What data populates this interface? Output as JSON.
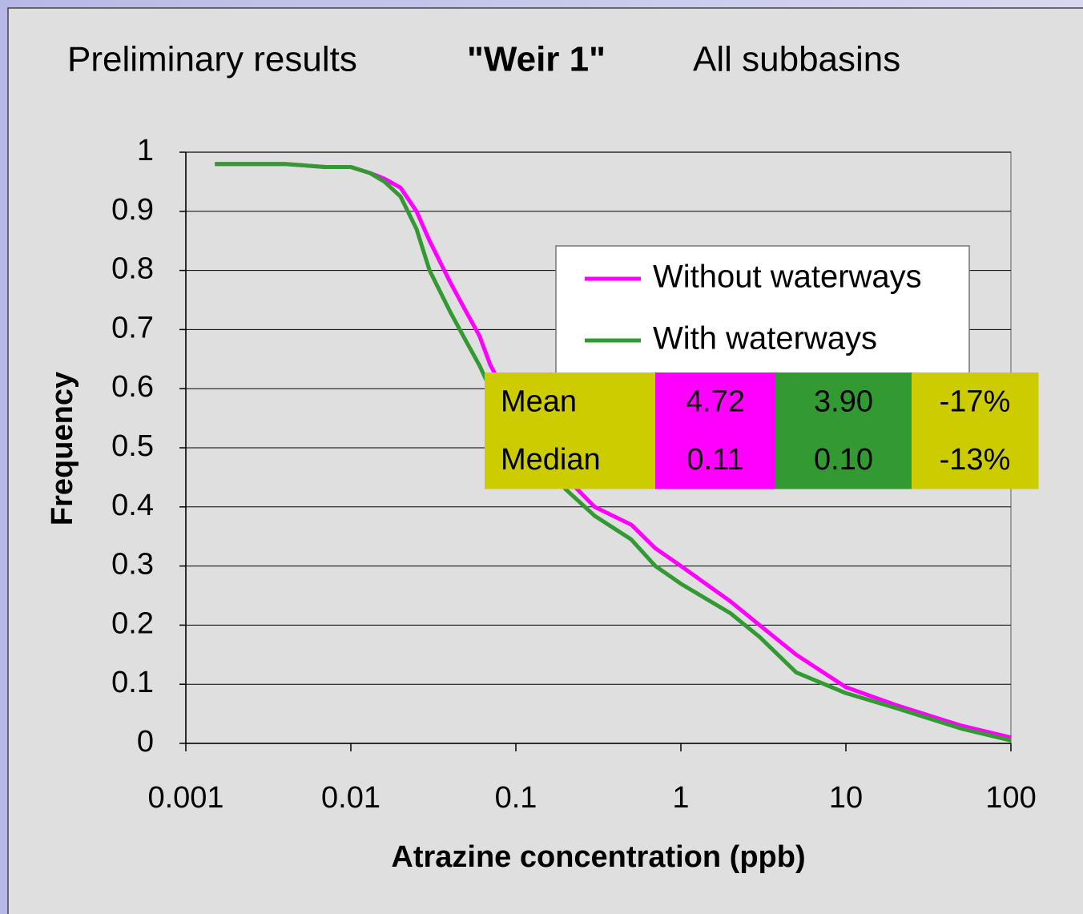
{
  "chart_data": {
    "type": "line",
    "title_parts": [
      "Preliminary results",
      "\"Weir 1\"",
      "All subbasins"
    ],
    "xlabel": "Atrazine concentration (ppb)",
    "ylabel": "Frequency",
    "xscale": "log",
    "xlim": [
      0.001,
      100
    ],
    "xticks": [
      0.001,
      0.01,
      0.1,
      1,
      10,
      100
    ],
    "ylim": [
      0,
      1
    ],
    "yticks": [
      0,
      0.1,
      0.2,
      0.3,
      0.4,
      0.5,
      0.6,
      0.7,
      0.8,
      0.9,
      1
    ],
    "grid": true,
    "legend": "upper right",
    "x": [
      0.0015,
      0.004,
      0.007,
      0.01,
      0.013,
      0.016,
      0.02,
      0.025,
      0.03,
      0.04,
      0.05,
      0.06,
      0.07,
      0.1,
      0.15,
      0.2,
      0.3,
      0.5,
      0.7,
      1,
      2,
      3,
      5,
      10,
      20,
      50,
      100
    ],
    "series": [
      {
        "name": "Without waterways",
        "color": "#ff00ff",
        "values": [
          0.98,
          0.98,
          0.975,
          0.975,
          0.965,
          0.955,
          0.94,
          0.9,
          0.85,
          0.78,
          0.73,
          0.69,
          0.64,
          0.56,
          0.49,
          0.45,
          0.4,
          0.37,
          0.33,
          0.3,
          0.24,
          0.2,
          0.15,
          0.095,
          0.065,
          0.03,
          0.01
        ]
      },
      {
        "name": "With waterways",
        "color": "#339933",
        "values": [
          0.98,
          0.98,
          0.975,
          0.975,
          0.965,
          0.95,
          0.925,
          0.87,
          0.8,
          0.73,
          0.68,
          0.64,
          0.6,
          0.53,
          0.47,
          0.43,
          0.385,
          0.345,
          0.3,
          0.27,
          0.22,
          0.18,
          0.12,
          0.085,
          0.06,
          0.025,
          0.005
        ]
      }
    ],
    "stats_table": {
      "colors": [
        "#cccc00",
        "#ff00ff",
        "#339933",
        "#cccc00"
      ],
      "rows": [
        [
          "Mean",
          "4.72",
          "3.90",
          "-17%"
        ],
        [
          "Median",
          "0.11",
          "0.10",
          "-13%"
        ]
      ]
    }
  }
}
